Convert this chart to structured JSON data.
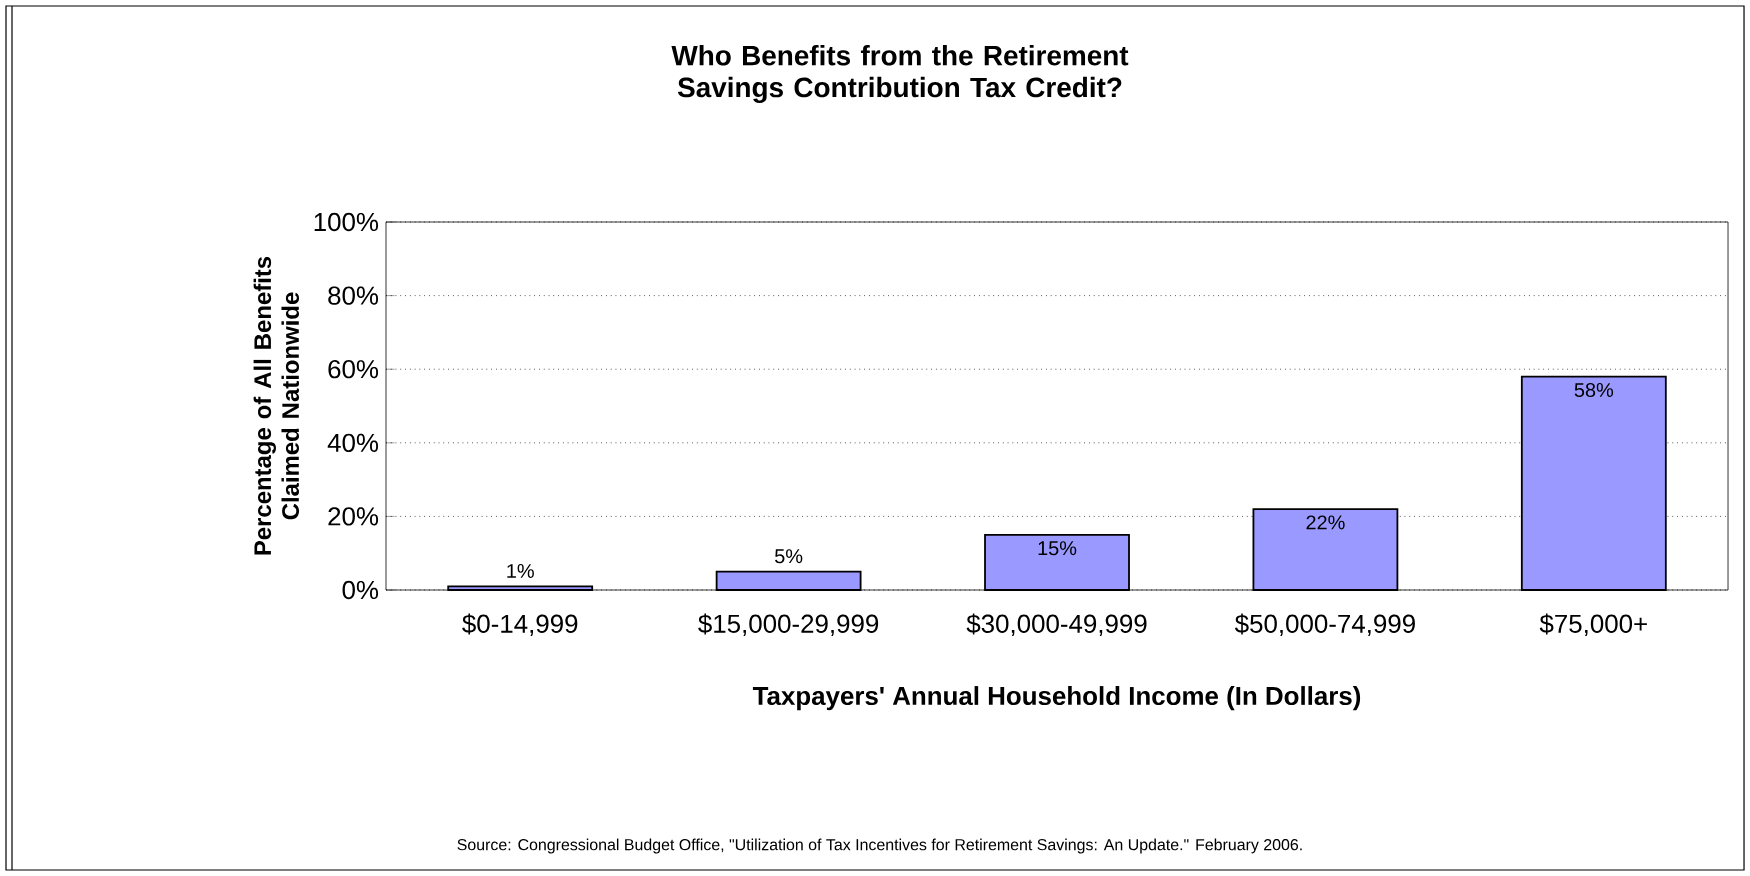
{
  "chart_data": {
    "type": "bar",
    "title": "Who Benefits from the Retirement Savings Contribution Tax Credit?",
    "xlabel": "Taxpayers' Annual Household Income (In Dollars)",
    "ylabel": "Percentage of All Benefits Claimed Nationwide",
    "categories": [
      "$0-14,999",
      "$15,000-29,999",
      "$30,000-49,999",
      "$50,000-74,999",
      "$75,000+"
    ],
    "values": [
      1,
      5,
      15,
      22,
      58
    ],
    "value_labels": [
      "1%",
      "5%",
      "15%",
      "22%",
      "58%"
    ],
    "color": "#9999ff",
    "ylim": [
      0,
      100
    ],
    "yticks": [
      {
        "value": 0,
        "label": "0%"
      },
      {
        "value": 20,
        "label": "20%"
      },
      {
        "value": 40,
        "label": "40%"
      },
      {
        "value": 60,
        "label": "60%"
      },
      {
        "value": 80,
        "label": "80%"
      },
      {
        "value": 100,
        "label": "100%"
      }
    ],
    "grid": "y",
    "annotations": [
      "Source: Congressional Budget Office, \"Utilization of Tax Incentives for Retirement Savings: An Update.\" February 2006."
    ]
  }
}
